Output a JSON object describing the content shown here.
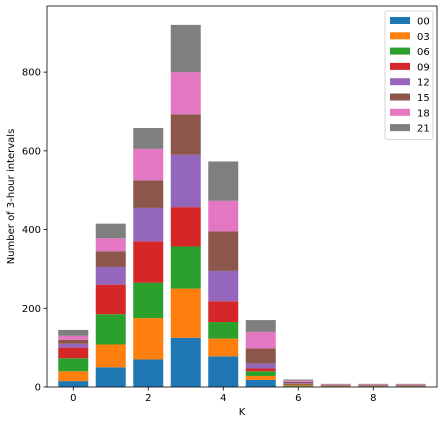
{
  "chart_data": {
    "type": "bar",
    "stacked": true,
    "xlabel": "K",
    "ylabel": "Number of 3-hour intervals",
    "x": [
      0,
      1,
      2,
      3,
      4,
      5,
      6,
      7,
      8,
      9
    ],
    "xticks": [
      0,
      2,
      4,
      6,
      8
    ],
    "xtick_labels": [
      "0",
      "2",
      "4",
      "6",
      "8"
    ],
    "xlim": [
      -0.7,
      9.7
    ],
    "yticks": [
      0,
      200,
      400,
      600,
      800
    ],
    "ytick_labels": [
      "0",
      "200",
      "400",
      "600",
      "800"
    ],
    "ylim": [
      0,
      968
    ],
    "legend_position": "top-right",
    "grid": false,
    "series": [
      {
        "name": "00",
        "color": "#1f77b4",
        "values": [
          15,
          50,
          70,
          125,
          78,
          18,
          2,
          1,
          1,
          1
        ]
      },
      {
        "name": "03",
        "color": "#ff7f0e",
        "values": [
          25,
          58,
          105,
          125,
          45,
          10,
          2,
          1,
          1,
          1
        ]
      },
      {
        "name": "06",
        "color": "#2ca02c",
        "values": [
          33,
          77,
          90,
          107,
          42,
          12,
          2,
          1,
          1,
          1
        ]
      },
      {
        "name": "09",
        "color": "#d62728",
        "values": [
          27,
          75,
          105,
          100,
          53,
          7,
          2,
          1,
          1,
          1
        ]
      },
      {
        "name": "12",
        "color": "#9467bd",
        "values": [
          10,
          45,
          85,
          133,
          77,
          13,
          2,
          1,
          1,
          1
        ]
      },
      {
        "name": "15",
        "color": "#8c564b",
        "values": [
          10,
          40,
          70,
          103,
          100,
          38,
          3,
          1,
          1,
          1
        ]
      },
      {
        "name": "18",
        "color": "#e377c2",
        "values": [
          10,
          33,
          80,
          107,
          78,
          42,
          3,
          1,
          1,
          1
        ]
      },
      {
        "name": "21",
        "color": "#7f7f7f",
        "values": [
          15,
          37,
          53,
          120,
          100,
          30,
          3,
          1,
          1,
          1
        ]
      }
    ]
  }
}
